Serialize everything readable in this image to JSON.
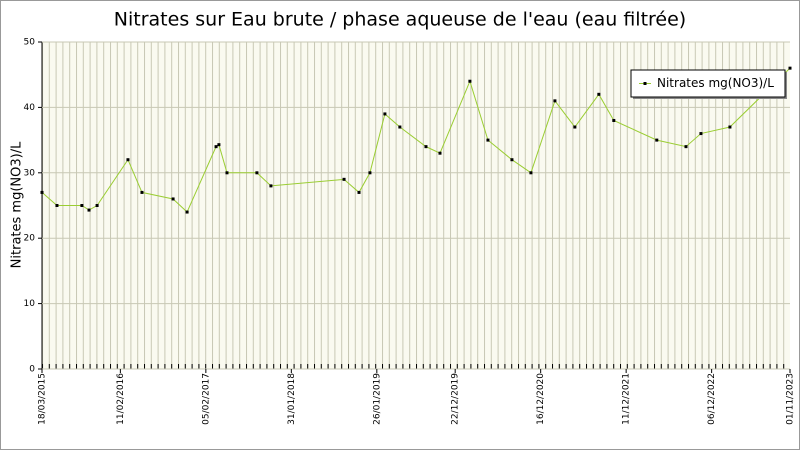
{
  "chart_data": {
    "type": "line",
    "title": "Nitrates sur Eau brute / phase aqueuse de l'eau (eau filtrée)",
    "y_label": "Nitrates mg(NO3)/L",
    "x": [
      "2015-03-18",
      "2015-05-20",
      "2015-09-02",
      "2015-10-02",
      "2015-11-05",
      "2016-03-14",
      "2016-05-12",
      "2016-09-20",
      "2016-11-18",
      "2017-03-20",
      "2017-04-01",
      "2017-05-05",
      "2017-09-08",
      "2017-11-06",
      "2018-09-10",
      "2018-11-12",
      "2018-12-28",
      "2019-03-01",
      "2019-05-03",
      "2019-08-21",
      "2019-10-19",
      "2020-02-22",
      "2020-05-08",
      "2020-08-17",
      "2020-11-05",
      "2021-02-14",
      "2021-05-09",
      "2021-08-18",
      "2021-10-20",
      "2022-04-19",
      "2022-08-20",
      "2022-10-22",
      "2023-02-21",
      "2023-11-01"
    ],
    "series": [
      {
        "name": "Nitrates mg(NO3)/L",
        "color": "#9acd32",
        "values": [
          27,
          25,
          25,
          24.3,
          25,
          32,
          27,
          26,
          24,
          34,
          34.3,
          30,
          30,
          28,
          29,
          27,
          30,
          39,
          37,
          34,
          33,
          44,
          35,
          32,
          30,
          41,
          37,
          42,
          38,
          35,
          34,
          36,
          37,
          46
        ]
      }
    ],
    "xlim": [
      "2015-03-18",
      "2023-11-01"
    ],
    "xticks": [
      {
        "value": "2015-03-18",
        "label": "18/03/2015"
      },
      {
        "value": "2016-02-11",
        "label": "11/02/2016"
      },
      {
        "value": "2017-02-05",
        "label": "05/02/2017"
      },
      {
        "value": "2018-01-31",
        "label": "31/01/2018"
      },
      {
        "value": "2019-01-26",
        "label": "26/01/2019"
      },
      {
        "value": "2019-12-22",
        "label": "22/12/2019"
      },
      {
        "value": "2020-12-16",
        "label": "16/12/2020"
      },
      {
        "value": "2021-12-11",
        "label": "11/12/2021"
      },
      {
        "value": "2022-12-06",
        "label": "06/12/2022"
      },
      {
        "value": "2023-11-01",
        "label": "01/11/2023"
      }
    ],
    "ylim": [
      0,
      50
    ],
    "yticks": [
      0,
      10,
      20,
      30,
      40,
      50
    ],
    "grid": true,
    "legend": "upper right"
  }
}
